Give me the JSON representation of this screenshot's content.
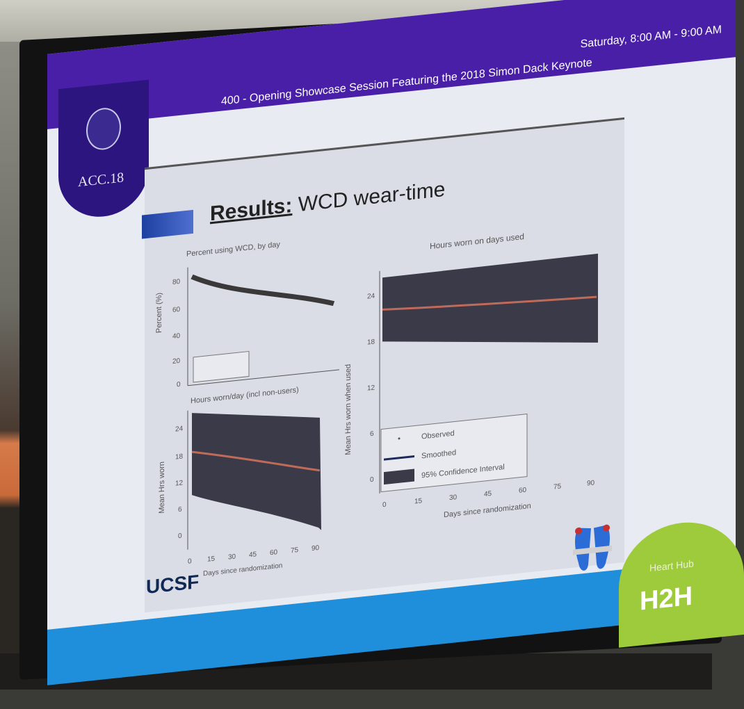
{
  "header": {
    "time": "Saturday, 8:00 AM - 9:00 AM",
    "session": "400 - Opening Showcase Session Featuring the 2018 Simon Dack Keynote"
  },
  "logo": {
    "text": "ACC.18"
  },
  "slide": {
    "title_bold": "Results:",
    "title_rest": " WCD wear-time",
    "logo_text": "UCSF"
  },
  "h2h": {
    "sub": "Heart Hub",
    "main": "H2H"
  },
  "charts": {
    "top_left": {
      "title": "Percent using WCD, by day",
      "ylabel": "Percent (%)",
      "yticks": [
        "80",
        "60",
        "40",
        "20",
        "0"
      ]
    },
    "bottom_left": {
      "title": "Hours worn/day (incl non-users)",
      "ylabel": "Mean Hrs worn",
      "yticks": [
        "24",
        "18",
        "12",
        "6",
        "0"
      ],
      "xticks": [
        "0",
        "15",
        "30",
        "45",
        "60",
        "75",
        "90"
      ],
      "xlabel": "Days since randomization"
    },
    "right": {
      "title": "Hours worn on days used",
      "ylabel": "Mean Hrs worn when used",
      "yticks": [
        "24",
        "18",
        "12",
        "6",
        "0"
      ],
      "xticks": [
        "0",
        "15",
        "30",
        "45",
        "60",
        "75",
        "90"
      ],
      "xlabel": "Days since randomization",
      "legend": [
        "Observed",
        "Smoothed",
        "95% Confidence Interval"
      ]
    }
  },
  "colors": {
    "header": "#4a1fa8",
    "band": "#1f8fdb",
    "h2h": "#9ecb3b"
  }
}
